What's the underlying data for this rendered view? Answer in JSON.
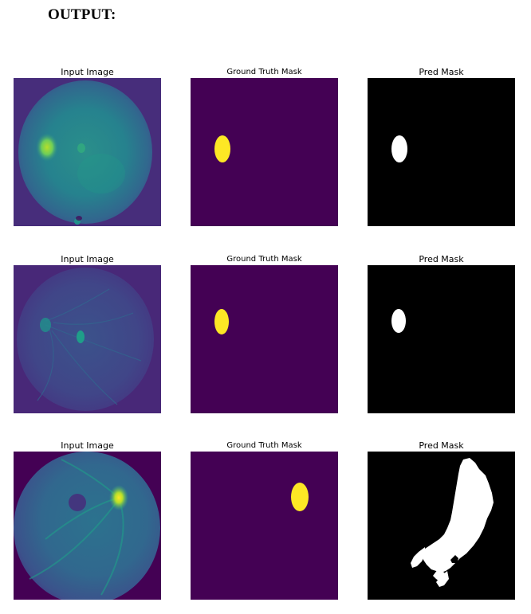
{
  "heading": "OUTPUT:",
  "rows": [
    {
      "input_title": "Input Image",
      "gt_title": "Ground Truth Mask",
      "pred_title": "Pred Mask"
    },
    {
      "input_title": "Input Image",
      "gt_title": "Ground Truth Mask",
      "pred_title": "Pred Mask"
    },
    {
      "input_title": "Input Image",
      "gt_title": "Ground Truth Mask",
      "pred_title": "Pred Mask"
    }
  ],
  "colors": {
    "mask_background": "#440154",
    "mask_foreground": "#fde725",
    "pred_background": "#000000",
    "pred_foreground": "#ffffff"
  }
}
